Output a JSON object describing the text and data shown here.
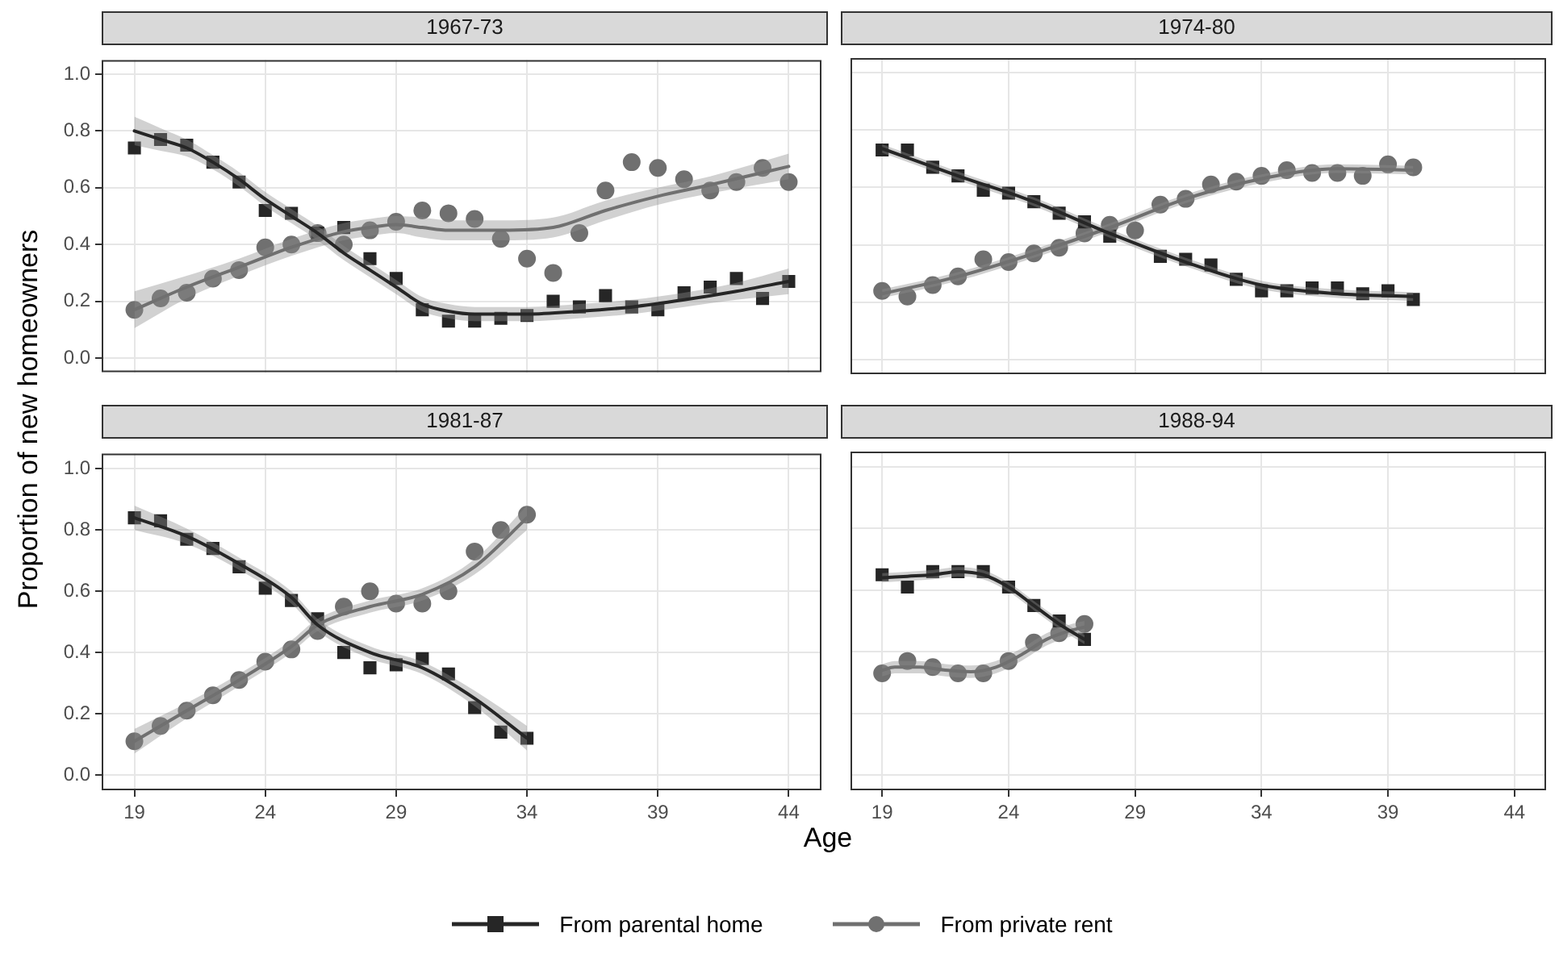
{
  "chart_data": [
    {
      "type": "scatter",
      "title": "1967-73",
      "ylabel": "Proportion of new homeowners",
      "xlim": [
        17.75,
        45.25
      ],
      "ylim": [
        -0.05,
        1.05
      ],
      "xticks": [
        19,
        24,
        29,
        34,
        39,
        44
      ],
      "yticks": [
        {
          "value": 0,
          "label": "0.0"
        },
        {
          "value": 0.2,
          "label": "0.2"
        },
        {
          "value": 0.4,
          "label": "0.4"
        },
        {
          "value": 0.6,
          "label": "0.6"
        },
        {
          "value": 0.8,
          "label": "0.8"
        },
        {
          "value": 1,
          "label": "1.0"
        }
      ],
      "tick_labels": "y",
      "grid": true,
      "series": [
        {
          "type": "scatter",
          "marker": "square",
          "color": "#262626",
          "x": [
            19,
            20,
            21,
            22,
            23,
            24,
            25,
            26,
            27,
            28,
            29,
            30,
            31,
            32,
            33,
            34,
            35,
            36,
            37,
            38,
            39,
            40,
            41,
            42,
            43,
            44
          ],
          "values": [
            0.74,
            0.77,
            0.75,
            0.69,
            0.62,
            0.52,
            0.51,
            0.44,
            0.46,
            0.35,
            0.28,
            0.17,
            0.13,
            0.13,
            0.14,
            0.15,
            0.2,
            0.18,
            0.22,
            0.18,
            0.17,
            0.23,
            0.25,
            0.28,
            0.21,
            0.27
          ]
        },
        {
          "type": "line",
          "color": "#262626",
          "x": [
            19,
            20,
            21,
            22,
            23,
            24,
            25,
            26,
            27,
            28,
            29,
            30,
            31,
            32,
            33,
            34,
            36,
            38,
            40,
            42,
            44
          ],
          "values": [
            0.8,
            0.77,
            0.74,
            0.69,
            0.63,
            0.56,
            0.5,
            0.44,
            0.37,
            0.31,
            0.25,
            0.19,
            0.165,
            0.155,
            0.155,
            0.155,
            0.165,
            0.18,
            0.205,
            0.235,
            0.27
          ],
          "lower": [
            0.75,
            0.73,
            0.71,
            0.665,
            0.605,
            0.535,
            0.475,
            0.415,
            0.345,
            0.285,
            0.225,
            0.165,
            0.14,
            0.13,
            0.13,
            0.13,
            0.14,
            0.155,
            0.18,
            0.205,
            0.225
          ],
          "upper": [
            0.85,
            0.81,
            0.77,
            0.715,
            0.655,
            0.585,
            0.525,
            0.465,
            0.395,
            0.335,
            0.275,
            0.215,
            0.19,
            0.18,
            0.18,
            0.18,
            0.19,
            0.205,
            0.23,
            0.265,
            0.315
          ]
        },
        {
          "type": "scatter",
          "marker": "circle",
          "color": "#707070",
          "x": [
            19,
            20,
            21,
            22,
            23,
            24,
            25,
            26,
            27,
            28,
            29,
            30,
            31,
            32,
            33,
            34,
            35,
            36,
            37,
            38,
            39,
            40,
            41,
            42,
            43,
            44
          ],
          "values": [
            0.17,
            0.21,
            0.23,
            0.28,
            0.31,
            0.39,
            0.4,
            0.44,
            0.4,
            0.45,
            0.48,
            0.52,
            0.51,
            0.49,
            0.42,
            0.35,
            0.3,
            0.44,
            0.59,
            0.69,
            0.67,
            0.63,
            0.59,
            0.62,
            0.67,
            0.62
          ]
        },
        {
          "type": "line",
          "color": "#707070",
          "x": [
            19,
            21,
            23,
            25,
            27,
            28,
            29,
            30,
            31,
            33,
            35,
            37,
            39,
            41,
            44
          ],
          "values": [
            0.17,
            0.25,
            0.32,
            0.39,
            0.445,
            0.46,
            0.47,
            0.46,
            0.45,
            0.45,
            0.46,
            0.52,
            0.57,
            0.61,
            0.675
          ],
          "lower": [
            0.105,
            0.21,
            0.29,
            0.36,
            0.415,
            0.43,
            0.44,
            0.425,
            0.415,
            0.415,
            0.425,
            0.485,
            0.54,
            0.58,
            0.63
          ],
          "upper": [
            0.235,
            0.29,
            0.35,
            0.42,
            0.475,
            0.49,
            0.5,
            0.495,
            0.485,
            0.485,
            0.495,
            0.555,
            0.6,
            0.64,
            0.72
          ]
        }
      ]
    },
    {
      "type": "scatter",
      "title": "1974-80",
      "xlim": [
        17.75,
        45.25
      ],
      "ylim": [
        -0.05,
        1.05
      ],
      "xticks": [
        19,
        24,
        29,
        34,
        39,
        44
      ],
      "yticks": [
        0,
        0.2,
        0.4,
        0.6,
        0.8,
        1
      ],
      "tick_labels": false,
      "grid": true,
      "series": [
        {
          "type": "scatter",
          "marker": "square",
          "color": "#262626",
          "x": [
            19,
            20,
            21,
            22,
            23,
            24,
            25,
            26,
            27,
            28,
            29,
            30,
            31,
            32,
            33,
            34,
            35,
            36,
            37,
            38,
            39,
            40
          ],
          "values": [
            0.73,
            0.73,
            0.67,
            0.64,
            0.59,
            0.58,
            0.55,
            0.51,
            0.48,
            0.43,
            null,
            0.36,
            0.35,
            0.33,
            0.28,
            0.24,
            0.24,
            0.25,
            0.25,
            0.23,
            0.24,
            0.21
          ]
        },
        {
          "type": "line",
          "color": "#262626",
          "x": [
            19,
            22,
            25,
            28,
            31,
            34,
            37,
            40
          ],
          "values": [
            0.735,
            0.64,
            0.55,
            0.44,
            0.34,
            0.26,
            0.23,
            0.22
          ],
          "lower": [
            0.72,
            0.625,
            0.535,
            0.425,
            0.325,
            0.245,
            0.215,
            0.205
          ],
          "upper": [
            0.75,
            0.655,
            0.565,
            0.455,
            0.355,
            0.275,
            0.245,
            0.235
          ]
        },
        {
          "type": "scatter",
          "marker": "circle",
          "color": "#707070",
          "x": [
            19,
            20,
            21,
            22,
            23,
            24,
            25,
            26,
            27,
            28,
            29,
            30,
            31,
            32,
            33,
            34,
            35,
            36,
            37,
            38,
            39,
            40
          ],
          "values": [
            0.24,
            0.22,
            0.26,
            0.29,
            0.35,
            0.34,
            0.37,
            0.39,
            0.44,
            0.47,
            0.45,
            0.54,
            0.56,
            0.61,
            0.62,
            0.64,
            0.66,
            0.65,
            0.65,
            0.64,
            0.68,
            0.67
          ]
        },
        {
          "type": "line",
          "color": "#707070",
          "x": [
            19,
            22,
            25,
            28,
            31,
            34,
            37,
            40
          ],
          "values": [
            0.23,
            0.29,
            0.37,
            0.46,
            0.56,
            0.63,
            0.665,
            0.66
          ],
          "lower": [
            0.215,
            0.275,
            0.355,
            0.445,
            0.545,
            0.615,
            0.65,
            0.645
          ],
          "upper": [
            0.245,
            0.305,
            0.385,
            0.475,
            0.575,
            0.645,
            0.68,
            0.675
          ]
        }
      ]
    },
    {
      "type": "scatter",
      "title": "1981-87",
      "xlabel": "Age",
      "xlim": [
        17.75,
        45.25
      ],
      "ylim": [
        -0.05,
        1.05
      ],
      "xticks": [
        19,
        24,
        29,
        34,
        39,
        44
      ],
      "yticks": [
        {
          "value": 0,
          "label": "0.0"
        },
        {
          "value": 0.2,
          "label": "0.2"
        },
        {
          "value": 0.4,
          "label": "0.4"
        },
        {
          "value": 0.6,
          "label": "0.6"
        },
        {
          "value": 0.8,
          "label": "0.8"
        },
        {
          "value": 1,
          "label": "1.0"
        }
      ],
      "grid": true,
      "series": [
        {
          "type": "scatter",
          "marker": "square",
          "color": "#262626",
          "x": [
            19,
            20,
            21,
            22,
            23,
            24,
            25,
            26,
            27,
            28,
            29,
            30,
            31,
            32,
            33,
            34
          ],
          "values": [
            0.84,
            0.83,
            0.77,
            0.74,
            0.68,
            0.61,
            0.57,
            0.51,
            0.4,
            0.35,
            0.36,
            0.38,
            0.33,
            0.22,
            0.14,
            0.12
          ]
        },
        {
          "type": "line",
          "color": "#262626",
          "x": [
            19,
            21,
            23,
            25,
            26,
            28,
            30,
            32,
            34
          ],
          "values": [
            0.84,
            0.78,
            0.69,
            0.58,
            0.49,
            0.4,
            0.35,
            0.25,
            0.12
          ],
          "lower": [
            0.8,
            0.755,
            0.67,
            0.56,
            0.47,
            0.38,
            0.33,
            0.225,
            0.08
          ],
          "upper": [
            0.88,
            0.805,
            0.71,
            0.6,
            0.51,
            0.42,
            0.37,
            0.275,
            0.16
          ]
        },
        {
          "type": "scatter",
          "marker": "circle",
          "color": "#707070",
          "x": [
            19,
            20,
            21,
            22,
            23,
            24,
            25,
            26,
            27,
            28,
            29,
            30,
            31,
            32,
            33,
            34
          ],
          "values": [
            0.11,
            0.16,
            0.21,
            0.26,
            0.31,
            0.37,
            0.41,
            0.47,
            0.55,
            0.6,
            0.56,
            0.56,
            0.6,
            0.73,
            0.8,
            0.85
          ]
        },
        {
          "type": "line",
          "color": "#707070",
          "x": [
            19,
            21,
            23,
            25,
            26,
            28,
            30,
            32,
            34
          ],
          "values": [
            0.11,
            0.21,
            0.31,
            0.42,
            0.49,
            0.55,
            0.59,
            0.68,
            0.84
          ],
          "lower": [
            0.07,
            0.185,
            0.29,
            0.4,
            0.47,
            0.53,
            0.57,
            0.655,
            0.8
          ],
          "upper": [
            0.15,
            0.235,
            0.33,
            0.44,
            0.51,
            0.57,
            0.61,
            0.705,
            0.88
          ]
        }
      ]
    },
    {
      "type": "scatter",
      "title": "1988-94",
      "xlim": [
        17.75,
        45.25
      ],
      "ylim": [
        -0.05,
        1.05
      ],
      "xticks": [
        19,
        24,
        29,
        34,
        39,
        44
      ],
      "yticks": [
        0,
        0.2,
        0.4,
        0.6,
        0.8,
        1
      ],
      "tick_labels": "x",
      "grid": true,
      "legend": "bottom",
      "series": [
        {
          "type": "scatter",
          "name": "From parental home",
          "marker": "square",
          "color": "#262626",
          "x": [
            19,
            20,
            21,
            22,
            23,
            24,
            25,
            26,
            27
          ],
          "values": [
            0.65,
            0.61,
            0.66,
            0.66,
            0.66,
            0.61,
            0.55,
            0.5,
            0.44
          ]
        },
        {
          "type": "line",
          "color": "#262626",
          "x": [
            19,
            20,
            21,
            22,
            23,
            24,
            25,
            26,
            27
          ],
          "values": [
            0.64,
            0.645,
            0.65,
            0.66,
            0.65,
            0.61,
            0.55,
            0.49,
            0.44
          ],
          "lower": [
            0.625,
            0.63,
            0.635,
            0.645,
            0.635,
            0.595,
            0.535,
            0.475,
            0.425
          ],
          "upper": [
            0.655,
            0.66,
            0.665,
            0.675,
            0.665,
            0.625,
            0.565,
            0.505,
            0.455
          ]
        },
        {
          "type": "scatter",
          "name": "From private rent",
          "marker": "circle",
          "color": "#707070",
          "x": [
            19,
            20,
            21,
            22,
            23,
            24,
            25,
            26,
            27
          ],
          "values": [
            0.33,
            0.37,
            0.35,
            0.33,
            0.33,
            0.37,
            0.43,
            0.46,
            0.49
          ]
        },
        {
          "type": "line",
          "color": "#707070",
          "x": [
            19,
            19.5,
            20.5,
            21.5,
            22.5,
            23.5,
            24.5,
            25.5,
            26.5,
            27
          ],
          "values": [
            0.34,
            0.35,
            0.35,
            0.34,
            0.335,
            0.35,
            0.39,
            0.44,
            0.47,
            0.48
          ],
          "lower": [
            0.32,
            0.33,
            0.33,
            0.32,
            0.315,
            0.33,
            0.37,
            0.42,
            0.45,
            0.46
          ],
          "upper": [
            0.36,
            0.37,
            0.37,
            0.36,
            0.355,
            0.37,
            0.41,
            0.46,
            0.49,
            0.5
          ]
        }
      ]
    }
  ]
}
